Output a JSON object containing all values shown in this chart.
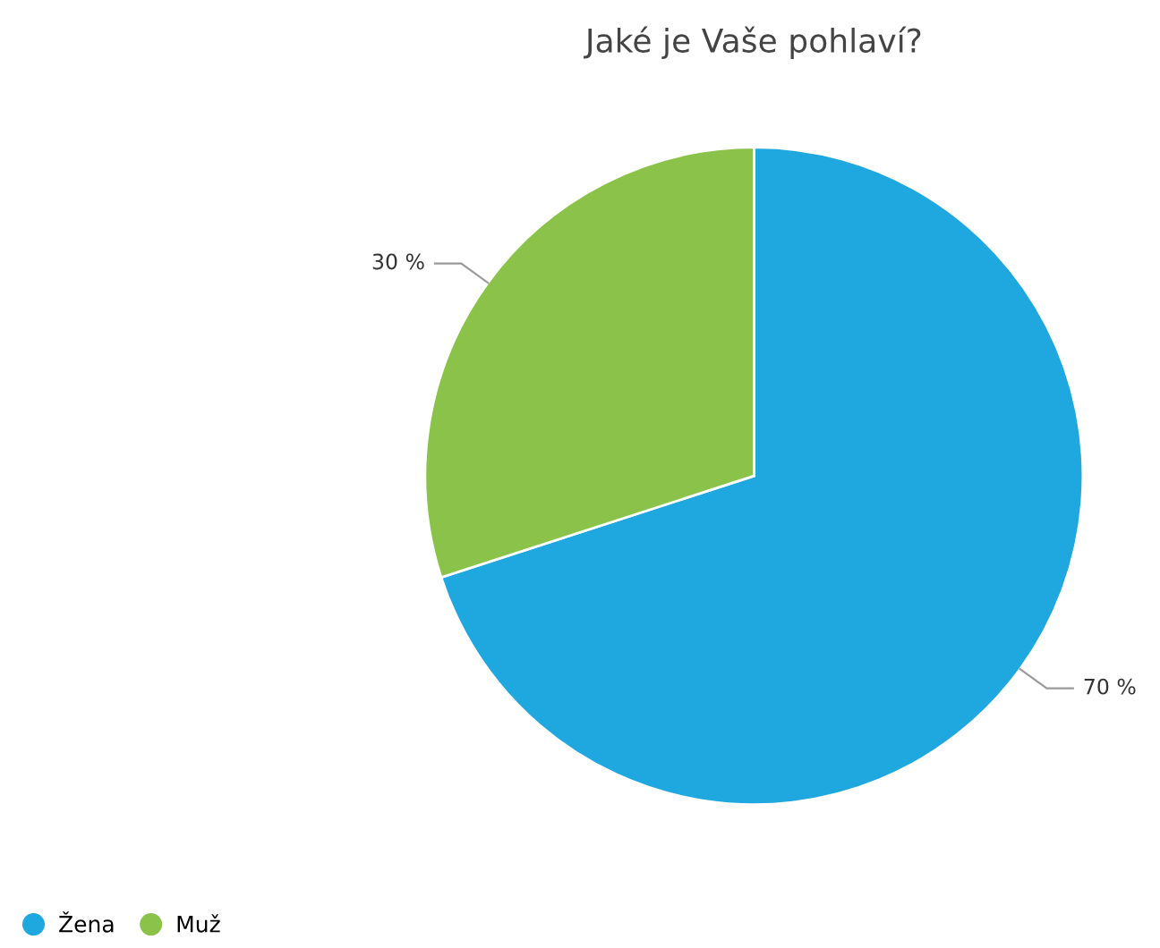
{
  "chart_data": {
    "type": "pie",
    "title": "Jaké je Vaše pohlaví?",
    "categories": [
      "Žena",
      "Muž"
    ],
    "values": [
      70,
      30
    ],
    "colors": [
      "#1fa8e0",
      "#8bc34a"
    ],
    "value_labels": [
      "70 %",
      "30 %"
    ],
    "legend": "bottom left"
  }
}
